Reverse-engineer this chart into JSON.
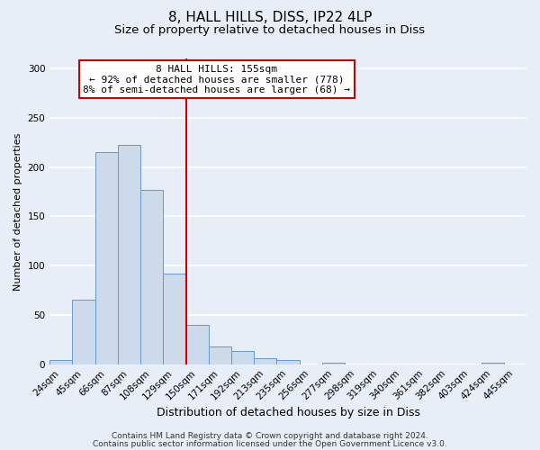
{
  "title": "8, HALL HILLS, DISS, IP22 4LP",
  "subtitle": "Size of property relative to detached houses in Diss",
  "xlabel": "Distribution of detached houses by size in Diss",
  "ylabel": "Number of detached properties",
  "bar_labels": [
    "24sqm",
    "45sqm",
    "66sqm",
    "87sqm",
    "108sqm",
    "129sqm",
    "150sqm",
    "171sqm",
    "192sqm",
    "213sqm",
    "235sqm",
    "256sqm",
    "277sqm",
    "298sqm",
    "319sqm",
    "340sqm",
    "361sqm",
    "382sqm",
    "403sqm",
    "424sqm",
    "445sqm"
  ],
  "bar_values": [
    4,
    65,
    215,
    222,
    177,
    92,
    40,
    18,
    13,
    6,
    4,
    0,
    2,
    0,
    0,
    0,
    0,
    0,
    0,
    2,
    0
  ],
  "bar_color": "#ccdaea",
  "bar_edge_color": "#6699cc",
  "vline_index": 6,
  "vline_color": "#cc0000",
  "annotation_title": "8 HALL HILLS: 155sqm",
  "annotation_line1": "← 92% of detached houses are smaller (778)",
  "annotation_line2": "8% of semi-detached houses are larger (68) →",
  "annotation_box_color": "white",
  "annotation_box_edge_color": "#cc0000",
  "ylim": [
    0,
    310
  ],
  "yticks": [
    0,
    50,
    100,
    150,
    200,
    250,
    300
  ],
  "footer1": "Contains HM Land Registry data © Crown copyright and database right 2024.",
  "footer2": "Contains public sector information licensed under the Open Government Licence v3.0.",
  "bg_color": "#e8eef8",
  "plot_bg_color": "#e8eef8",
  "grid_color": "white",
  "title_fontsize": 11,
  "subtitle_fontsize": 9.5,
  "xlabel_fontsize": 9,
  "ylabel_fontsize": 8,
  "tick_fontsize": 7.5,
  "annot_fontsize": 8,
  "footer_fontsize": 6.5
}
